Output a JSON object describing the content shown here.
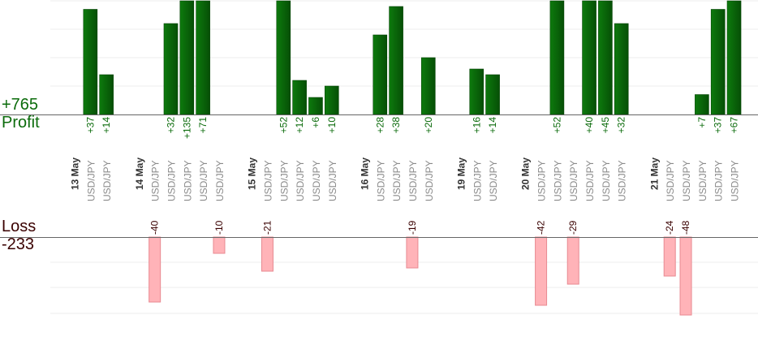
{
  "summary": {
    "profit_total": "+765",
    "profit_label": "Profit",
    "loss_label": "Loss",
    "loss_total": "-233"
  },
  "colors": {
    "profit_bar": "#0a640a",
    "loss_bar": "#ffb3b8",
    "loss_bar_edge": "#e88a92",
    "profit_text": "#0b6b0b",
    "loss_text": "#3a0000",
    "pair_text": "#8a8a8a",
    "date_text": "#333333"
  },
  "chart_data": {
    "type": "bar",
    "profit_axis_max": 40,
    "loss_axis_max": 60,
    "columns": [
      {
        "kind": "date",
        "label": "13 May"
      },
      {
        "kind": "trade",
        "pair": "USD/JPY",
        "profit": 37
      },
      {
        "kind": "trade",
        "pair": "USD/JPY",
        "profit": 14
      },
      {
        "kind": "date",
        "label": ""
      },
      {
        "kind": "date",
        "label": "14 May"
      },
      {
        "kind": "trade",
        "pair": "USD/JPY",
        "loss": -40
      },
      {
        "kind": "trade",
        "pair": "USD/JPY",
        "profit": 32
      },
      {
        "kind": "trade",
        "pair": "USD/JPY",
        "profit": 135
      },
      {
        "kind": "trade",
        "pair": "USD/JPY",
        "profit": 71
      },
      {
        "kind": "trade",
        "pair": "USD/JPY",
        "loss": -10
      },
      {
        "kind": "date",
        "label": ""
      },
      {
        "kind": "date",
        "label": "15 May"
      },
      {
        "kind": "trade",
        "pair": "USD/JPY",
        "loss": -21
      },
      {
        "kind": "trade",
        "pair": "USD/JPY",
        "profit": 52
      },
      {
        "kind": "trade",
        "pair": "USD/JPY",
        "profit": 12
      },
      {
        "kind": "trade",
        "pair": "USD/JPY",
        "profit": 6
      },
      {
        "kind": "trade",
        "pair": "USD/JPY",
        "profit": 10
      },
      {
        "kind": "date",
        "label": ""
      },
      {
        "kind": "date",
        "label": "16 May"
      },
      {
        "kind": "trade",
        "pair": "USD/JPY",
        "profit": 28
      },
      {
        "kind": "trade",
        "pair": "USD/JPY",
        "profit": 38
      },
      {
        "kind": "trade",
        "pair": "USD/JPY",
        "loss": -19
      },
      {
        "kind": "trade",
        "pair": "USD/JPY",
        "profit": 20
      },
      {
        "kind": "date",
        "label": ""
      },
      {
        "kind": "date",
        "label": "19 May"
      },
      {
        "kind": "trade",
        "pair": "USD/JPY",
        "profit": 16
      },
      {
        "kind": "trade",
        "pair": "USD/JPY",
        "profit": 14
      },
      {
        "kind": "date",
        "label": ""
      },
      {
        "kind": "date",
        "label": "20 May"
      },
      {
        "kind": "trade",
        "pair": "USD/JPY",
        "loss": -42
      },
      {
        "kind": "trade",
        "pair": "USD/JPY",
        "profit": 52
      },
      {
        "kind": "trade",
        "pair": "USD/JPY",
        "loss": -29
      },
      {
        "kind": "trade",
        "pair": "USD/JPY",
        "profit": 40
      },
      {
        "kind": "trade",
        "pair": "USD/JPY",
        "profit": 45
      },
      {
        "kind": "trade",
        "pair": "USD/JPY",
        "profit": 32
      },
      {
        "kind": "date",
        "label": ""
      },
      {
        "kind": "date",
        "label": "21 May"
      },
      {
        "kind": "trade",
        "pair": "USD/JPY",
        "loss": -24
      },
      {
        "kind": "trade",
        "pair": "USD/JPY",
        "loss": -48
      },
      {
        "kind": "trade",
        "pair": "USD/JPY",
        "profit": 7
      },
      {
        "kind": "trade",
        "pair": "USD/JPY",
        "profit": 37
      },
      {
        "kind": "trade",
        "pair": "USD/JPY",
        "profit": 67
      }
    ]
  }
}
